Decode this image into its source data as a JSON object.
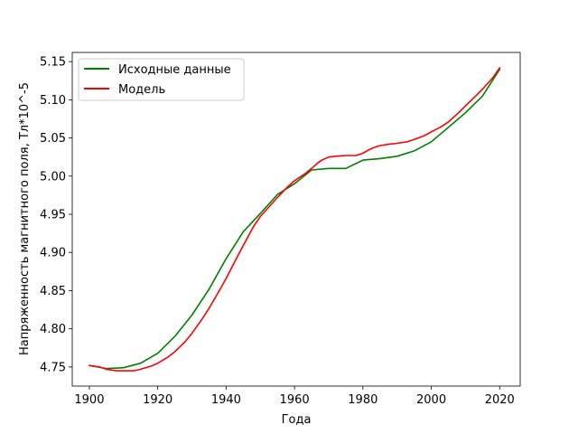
{
  "chart_data": {
    "type": "line",
    "title": "",
    "xlabel": "Года",
    "ylabel": "Напряженность магнитного поля, Тл*10^-5",
    "xlim": [
      1895,
      2026
    ],
    "ylim": [
      4.725,
      5.162
    ],
    "xticks": [
      "1900",
      "1920",
      "1940",
      "1960",
      "1980",
      "2000",
      "2020"
    ],
    "yticks": [
      "4.75",
      "4.80",
      "4.85",
      "4.90",
      "4.95",
      "5.00",
      "5.05",
      "5.10",
      "5.15"
    ],
    "grid": false,
    "legend_position": "top-left",
    "series": [
      {
        "name": "Исходные данные",
        "color": "#008000",
        "x": [
          1900,
          1905,
          1910,
          1915,
          1920,
          1925,
          1930,
          1935,
          1940,
          1945,
          1950,
          1955,
          1960,
          1965,
          1970,
          1975,
          1980,
          1985,
          1990,
          1995,
          2000,
          2005,
          2010,
          2015,
          2020
        ],
        "y": [
          4.752,
          4.748,
          4.749,
          4.755,
          4.768,
          4.79,
          4.818,
          4.852,
          4.892,
          4.927,
          4.951,
          4.976,
          4.99,
          5.008,
          5.01,
          5.01,
          5.021,
          5.023,
          5.026,
          5.033,
          5.045,
          5.064,
          5.083,
          5.105,
          5.14
        ]
      },
      {
        "name": "Модель",
        "color": "#ff0000",
        "x": [
          1900,
          1903,
          1905,
          1908,
          1910,
          1913,
          1915,
          1918,
          1920,
          1923,
          1925,
          1928,
          1930,
          1933,
          1935,
          1938,
          1940,
          1943,
          1945,
          1948,
          1950,
          1953,
          1955,
          1958,
          1960,
          1963,
          1965,
          1967,
          1968,
          1970,
          1972,
          1975,
          1978,
          1980,
          1982,
          1983,
          1985,
          1988,
          1990,
          1993,
          1995,
          1998,
          2000,
          2003,
          2005,
          2008,
          2010,
          2013,
          2015,
          2018,
          2020
        ],
        "y": [
          4.752,
          4.75,
          4.747,
          4.745,
          4.745,
          4.745,
          4.747,
          4.751,
          4.755,
          4.763,
          4.77,
          4.783,
          4.794,
          4.813,
          4.827,
          4.85,
          4.866,
          4.892,
          4.909,
          4.934,
          4.947,
          4.962,
          4.972,
          4.986,
          4.994,
          5.003,
          5.01,
          5.018,
          5.021,
          5.025,
          5.026,
          5.027,
          5.027,
          5.03,
          5.035,
          5.037,
          5.04,
          5.042,
          5.043,
          5.045,
          5.048,
          5.053,
          5.058,
          5.065,
          5.071,
          5.083,
          5.092,
          5.105,
          5.114,
          5.129,
          5.142
        ]
      }
    ]
  }
}
